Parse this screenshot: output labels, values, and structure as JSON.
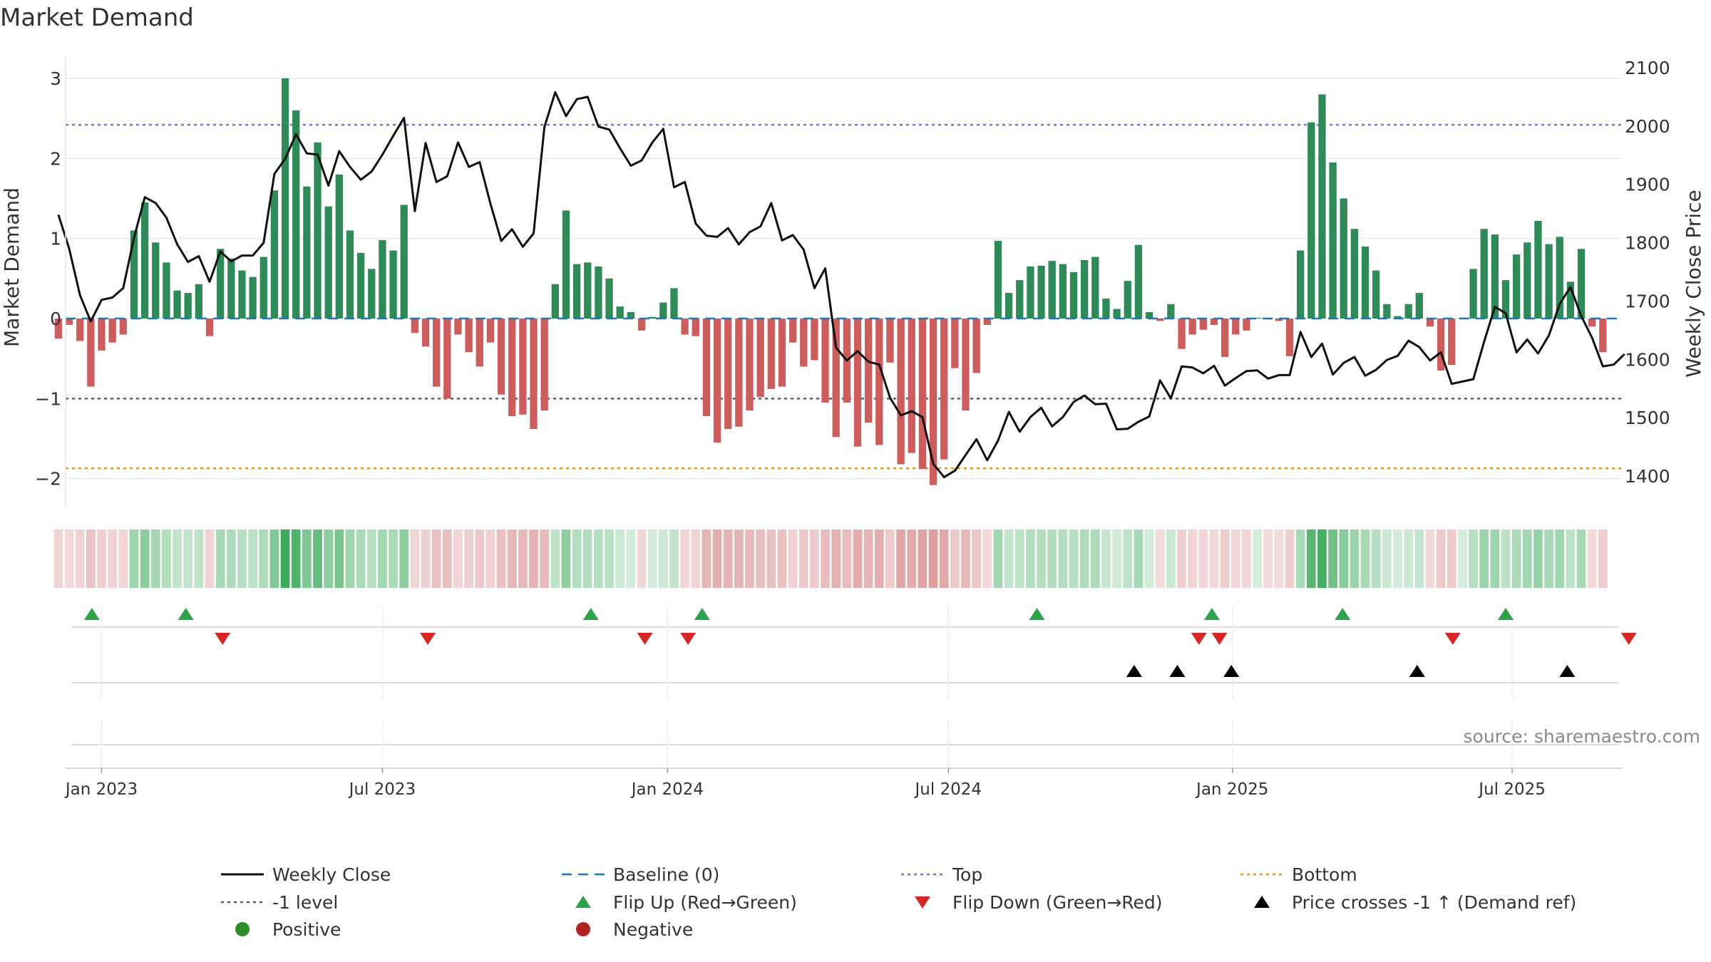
{
  "chart_data": {
    "type": "bar",
    "title": "Market Demand",
    "ylabel_left": "Market Demand",
    "ylabel_right": "Weekly Close Price",
    "source": "source: sharemaestro.com",
    "ylim_left": [
      -2.35,
      3.3
    ],
    "ylim_right": [
      1350,
      2120
    ],
    "yticks_left": [
      {
        "value": 3,
        "label": "3"
      },
      {
        "value": 2,
        "label": "2"
      },
      {
        "value": 1,
        "label": "1"
      },
      {
        "value": 0,
        "label": "0"
      },
      {
        "value": -1,
        "label": "−1"
      },
      {
        "value": -2,
        "label": "−2"
      }
    ],
    "yticks_right": [
      {
        "value": 2100,
        "label": "2100"
      },
      {
        "value": 2000,
        "label": "2000"
      },
      {
        "value": 1900,
        "label": "1900"
      },
      {
        "value": 1800,
        "label": "1800"
      },
      {
        "value": 1700,
        "label": "1700"
      },
      {
        "value": 1600,
        "label": "1600"
      },
      {
        "value": 1500,
        "label": "1500"
      },
      {
        "value": 1400,
        "label": "1400"
      }
    ],
    "start_week_index": -4,
    "week_count": 146,
    "xticks": [
      {
        "week": 0,
        "label": "Jan 2023"
      },
      {
        "week": 26,
        "label": "Jul 2023"
      },
      {
        "week": 52.4,
        "label": "Jan 2024"
      },
      {
        "week": 78.4,
        "label": "Jul 2024"
      },
      {
        "week": 104.7,
        "label": "Jan 2025"
      },
      {
        "week": 130.6,
        "label": "Jul 2025"
      }
    ],
    "reference_lines": {
      "top": 2.42,
      "bottom": -1.87,
      "minus_one": -1,
      "baseline": 0
    },
    "demand": [
      -0.25,
      -0.08,
      -0.28,
      -0.85,
      -0.4,
      -0.3,
      -0.2,
      1.1,
      1.45,
      0.95,
      0.7,
      0.35,
      0.32,
      0.43,
      -0.22,
      0.87,
      0.75,
      0.6,
      0.52,
      0.77,
      1.6,
      3.0,
      2.6,
      1.65,
      2.2,
      1.4,
      1.8,
      1.1,
      0.82,
      0.62,
      0.98,
      0.85,
      1.42,
      -0.18,
      -0.35,
      -0.85,
      -1.0,
      -0.2,
      -0.42,
      -0.6,
      -0.3,
      -0.95,
      -1.22,
      -1.2,
      -1.38,
      -1.15,
      0.43,
      1.35,
      0.68,
      0.7,
      0.65,
      0.5,
      0.15,
      0.08,
      -0.15,
      0.02,
      0.2,
      0.38,
      -0.2,
      -0.22,
      -1.22,
      -1.55,
      -1.38,
      -1.35,
      -1.15,
      -0.98,
      -0.88,
      -0.85,
      -0.3,
      -0.6,
      -0.52,
      -1.05,
      -1.48,
      -1.05,
      -1.6,
      -1.3,
      -1.58,
      -0.55,
      -1.82,
      -1.68,
      -1.88,
      -2.08,
      -1.76,
      -0.62,
      -1.15,
      -0.68,
      -0.08,
      0.97,
      0.32,
      0.48,
      0.65,
      0.66,
      0.72,
      0.68,
      0.58,
      0.73,
      0.77,
      0.25,
      0.12,
      0.47,
      0.92,
      0.08,
      -0.03,
      0.18,
      -0.38,
      -0.2,
      -0.14,
      -0.08,
      -0.48,
      -0.2,
      -0.15,
      0.01,
      -0.01,
      -0.03,
      -0.47,
      0.85,
      2.45,
      2.8,
      1.95,
      1.5,
      1.12,
      0.9,
      0.6,
      0.18,
      0.03,
      0.18,
      0.32,
      -0.1,
      -0.65,
      -0.58,
      0.01,
      0.62,
      1.12,
      1.05,
      0.48,
      0.8,
      0.95,
      1.22,
      0.93,
      1.02,
      0.46,
      0.87,
      -0.1,
      -0.42
    ],
    "price": [
      1848,
      1790,
      1710,
      1665,
      1702,
      1706,
      1722,
      1808,
      1878,
      1868,
      1843,
      1797,
      1767,
      1777,
      1733,
      1785,
      1768,
      1778,
      1778,
      1800,
      1918,
      1944,
      1986,
      1953,
      1951,
      1898,
      1957,
      1930,
      1908,
      1922,
      1951,
      1983,
      2014,
      1854,
      1971,
      1904,
      1914,
      1972,
      1930,
      1938,
      1867,
      1803,
      1823,
      1793,
      1816,
      1998,
      2058,
      2017,
      2046,
      2050,
      1999,
      1994,
      1962,
      1932,
      1941,
      1972,
      1995,
      1895,
      1904,
      1833,
      1812,
      1810,
      1825,
      1797,
      1818,
      1828,
      1868,
      1804,
      1813,
      1788,
      1722,
      1756,
      1620,
      1598,
      1614,
      1596,
      1591,
      1534,
      1504,
      1511,
      1501,
      1421,
      1398,
      1409,
      1436,
      1463,
      1427,
      1461,
      1510,
      1476,
      1501,
      1517,
      1485,
      1501,
      1527,
      1538,
      1523,
      1524,
      1480,
      1481,
      1493,
      1502,
      1564,
      1533,
      1588,
      1586,
      1576,
      1589,
      1555,
      1568,
      1580,
      1581,
      1567,
      1573,
      1573,
      1647,
      1604,
      1627,
      1574,
      1594,
      1604,
      1572,
      1582,
      1599,
      1606,
      1632,
      1621,
      1598,
      1612,
      1558,
      1562,
      1566,
      1630,
      1690,
      1679,
      1612,
      1634,
      1610,
      1641,
      1695,
      1724,
      1674,
      1637,
      1588,
      1591,
      1609
    ],
    "flip_up": [
      -0.9,
      7.8,
      45.3,
      55.6,
      86.6,
      102.8,
      114.9,
      130.0
    ],
    "flip_down": [
      11.2,
      30.2,
      50.3,
      54.3,
      101.6,
      103.5,
      125.1,
      141.4
    ],
    "cross_markers": [
      95.6,
      99.6,
      104.6,
      121.8,
      135.7
    ],
    "legend": [
      {
        "key": "close",
        "label": "Weekly Close"
      },
      {
        "key": "baseline",
        "label": "Baseline (0)"
      },
      {
        "key": "top",
        "label": "Top"
      },
      {
        "key": "bottom",
        "label": "Bottom"
      },
      {
        "key": "minus1",
        "label": "-1 level"
      },
      {
        "key": "flipup",
        "label": "Flip Up (Red→Green)"
      },
      {
        "key": "flipdown",
        "label": "Flip Down (Green→Red)"
      },
      {
        "key": "cross",
        "label": "Price crosses -1 ↑ (Demand ref)"
      },
      {
        "key": "positive",
        "label": "Positive"
      },
      {
        "key": "negative",
        "label": "Negative"
      }
    ],
    "colors": {
      "positive_bar": "#2e8b57",
      "negative_bar": "#cd5c5c",
      "close_line": "#111111",
      "baseline": "#1f77b4",
      "top": "#7b6fd0",
      "bottom": "#e0951c",
      "minus_one": "#5a5a70",
      "flip_up": "#2ca24a",
      "flip_down": "#d62728",
      "cross": "#000000",
      "positive_legend": "#2a8f2a",
      "negative_legend": "#b22222",
      "text": "#333333",
      "source": "#8a8a8a"
    }
  }
}
